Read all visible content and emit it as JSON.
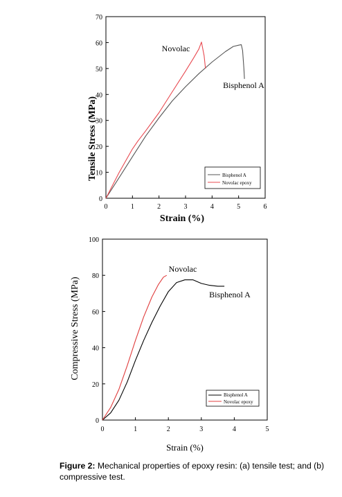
{
  "caption": {
    "label": "Figure 2:",
    "text": "Mechanical properties of epoxy resin: (a) tensile test; and (b) compressive test."
  },
  "chart_data": [
    {
      "type": "line",
      "title": "",
      "xlabel": "Strain (%)",
      "ylabel": "Tensile Stress (MPa)",
      "xlim": [
        0,
        6
      ],
      "ylim": [
        0,
        70
      ],
      "xticks": [
        "0",
        "1",
        "2",
        "3",
        "4",
        "5",
        "6"
      ],
      "yticks": [
        "0",
        "10",
        "20",
        "30",
        "40",
        "50",
        "60",
        "70"
      ],
      "grid": false,
      "legend_position": "bottom-right",
      "annotations": [
        "Novolac",
        "Bisphenol A"
      ],
      "series": [
        {
          "name": "Bisphenol A",
          "color": "#555555",
          "x": [
            0,
            0.5,
            1.0,
            1.5,
            2.0,
            2.5,
            3.0,
            3.5,
            4.0,
            4.5,
            4.8,
            5.0,
            5.1,
            5.15,
            5.2,
            5.22
          ],
          "y": [
            0,
            8,
            16,
            24,
            31,
            37.5,
            43,
            48,
            52.5,
            56.5,
            58.5,
            59,
            59.2,
            57,
            50,
            46
          ]
        },
        {
          "name": "Novolac epoxy",
          "color": "#e8484f",
          "x": [
            0,
            0.5,
            1.0,
            1.2,
            1.5,
            2.0,
            2.5,
            3.0,
            3.3,
            3.5,
            3.6,
            3.7,
            3.75
          ],
          "y": [
            0,
            10,
            19,
            22,
            26,
            33,
            41,
            49,
            54,
            57.5,
            60.2,
            55,
            50
          ]
        }
      ]
    },
    {
      "type": "line",
      "title": "",
      "xlabel": "Strain (%)",
      "ylabel": "Compressive Stress (MPa)",
      "xlim": [
        0,
        5
      ],
      "ylim": [
        0,
        100
      ],
      "xticks": [
        "0",
        "1",
        "2",
        "3",
        "4",
        "5"
      ],
      "yticks": [
        "0",
        "20",
        "40",
        "60",
        "80",
        "100"
      ],
      "grid": false,
      "legend_position": "bottom-right",
      "annotations": [
        "Novolac",
        "Bisphenol A"
      ],
      "series": [
        {
          "name": "Bisphenol A",
          "color": "#000000",
          "x": [
            0,
            0.25,
            0.5,
            0.75,
            1.0,
            1.25,
            1.5,
            1.75,
            2.0,
            2.25,
            2.5,
            2.75,
            3.0,
            3.25,
            3.5,
            3.7
          ],
          "y": [
            0,
            4,
            11,
            21,
            33,
            44,
            54,
            63,
            71,
            76,
            77.5,
            77.5,
            75.5,
            74.5,
            74,
            74
          ]
        },
        {
          "name": "Novolac epoxy",
          "color": "#e03c3c",
          "x": [
            0,
            0.25,
            0.5,
            0.75,
            1.0,
            1.25,
            1.5,
            1.7,
            1.85,
            1.95
          ],
          "y": [
            0,
            7,
            17,
            30,
            44,
            57,
            68,
            75,
            79,
            80
          ]
        }
      ]
    }
  ],
  "labels": [
    {
      "lines": [
        "Bisphenol A"
      ],
      "name": "bisphenol-a-legend-label"
    },
    {
      "lines": [
        "Novolac epoxy"
      ],
      "name": "novolac-epoxy-legend-label"
    }
  ]
}
